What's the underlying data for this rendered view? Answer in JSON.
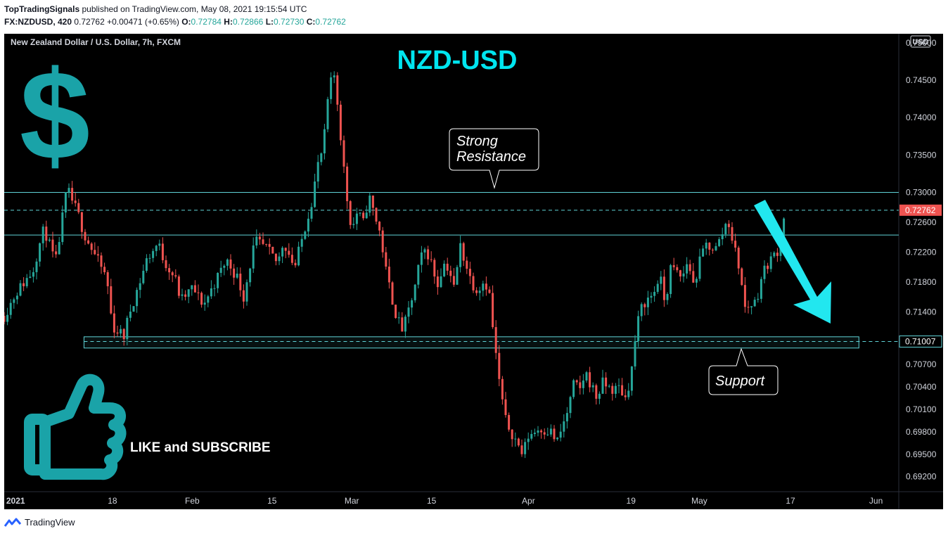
{
  "header": {
    "author": "TopTradingSignals",
    "published": "published on TradingView.com, May 08, 2021 19:15:54 UTC",
    "symbol": "FX:NZDUSD, 420",
    "last": "0.72762",
    "change": "+0.00471 (+0.65%)",
    "o_label": "O:",
    "o_value": "0.72784",
    "h_label": "H:",
    "h_value": "0.72866",
    "l_label": "L:",
    "l_value": "0.72730",
    "c_label": "C:",
    "c_value": "0.72762"
  },
  "chart_data": {
    "type": "candlestick",
    "legend_title": "New Zealand Dollar / U.S. Dollar, 7h, FXCM",
    "currency_label": "USD",
    "title": "NZD-USD",
    "y_ticks": [
      "0.75000",
      "0.74500",
      "0.74000",
      "0.73500",
      "0.73000",
      "0.72600",
      "0.72200",
      "0.71800",
      "0.71400",
      "0.71007",
      "0.70700",
      "0.70400",
      "0.70100",
      "0.69800",
      "0.69500",
      "0.69200"
    ],
    "y_range": [
      0.69,
      0.7512
    ],
    "x_labels": [
      {
        "label": "2021",
        "date": "2021-01-01",
        "bold": true
      },
      {
        "label": "18",
        "date": "2021-01-18"
      },
      {
        "label": "Feb",
        "date": "2021-02-01"
      },
      {
        "label": "15",
        "date": "2021-02-15"
      },
      {
        "label": "Mar",
        "date": "2021-03-01"
      },
      {
        "label": "15",
        "date": "2021-03-15"
      },
      {
        "label": "Apr",
        "date": "2021-04-01"
      },
      {
        "label": "19",
        "date": "2021-04-19"
      },
      {
        "label": "May",
        "date": "2021-05-01"
      },
      {
        "label": "17",
        "date": "2021-05-17"
      },
      {
        "label": "Jun",
        "date": "2021-06-01"
      }
    ],
    "x_range": [
      "2020-12-30",
      "2021-06-05"
    ],
    "last_price": {
      "value": 0.72762,
      "label": "0.72762"
    },
    "support_price": {
      "value": 0.71007,
      "label": "0.71007"
    },
    "resistance_lines": [
      0.73,
      0.7243
    ],
    "support_zone": [
      0.7092,
      0.7107
    ],
    "price_path": [
      [
        "2020-12-30",
        0.7135
      ],
      [
        "2021-01-01",
        0.7165
      ],
      [
        "2021-01-04",
        0.7195
      ],
      [
        "2021-01-05",
        0.7225
      ],
      [
        "2021-01-06",
        0.7252
      ],
      [
        "2021-01-08",
        0.7205
      ],
      [
        "2021-01-09",
        0.7255
      ],
      [
        "2021-01-10",
        0.7305
      ],
      [
        "2021-01-12",
        0.727
      ],
      [
        "2021-01-13",
        0.7245
      ],
      [
        "2021-01-15",
        0.7215
      ],
      [
        "2021-01-17",
        0.7185
      ],
      [
        "2021-01-18",
        0.712
      ],
      [
        "2021-01-20",
        0.7108
      ],
      [
        "2021-01-21",
        0.714
      ],
      [
        "2021-01-23",
        0.7185
      ],
      [
        "2021-01-24",
        0.721
      ],
      [
        "2021-01-26",
        0.7232
      ],
      [
        "2021-01-27",
        0.721
      ],
      [
        "2021-01-29",
        0.7185
      ],
      [
        "2021-01-30",
        0.7155
      ],
      [
        "2021-02-01",
        0.7172
      ],
      [
        "2021-02-03",
        0.715
      ],
      [
        "2021-02-05",
        0.718
      ],
      [
        "2021-02-07",
        0.721
      ],
      [
        "2021-02-09",
        0.7185
      ],
      [
        "2021-02-10",
        0.716
      ],
      [
        "2021-02-12",
        0.7235
      ],
      [
        "2021-02-14",
        0.7225
      ],
      [
        "2021-02-16",
        0.7205
      ],
      [
        "2021-02-17",
        0.7235
      ],
      [
        "2021-02-19",
        0.72
      ],
      [
        "2021-02-20",
        0.723
      ],
      [
        "2021-02-22",
        0.729
      ],
      [
        "2021-02-23",
        0.7335
      ],
      [
        "2021-02-24",
        0.736
      ],
      [
        "2021-02-25",
        0.744
      ],
      [
        "2021-02-26",
        0.7458
      ],
      [
        "2021-02-27",
        0.738
      ],
      [
        "2021-02-28",
        0.73
      ],
      [
        "2021-03-01",
        0.725
      ],
      [
        "2021-03-02",
        0.7275
      ],
      [
        "2021-03-03",
        0.7258
      ],
      [
        "2021-03-04",
        0.7295
      ],
      [
        "2021-03-05",
        0.727
      ],
      [
        "2021-03-06",
        0.7245
      ],
      [
        "2021-03-07",
        0.7195
      ],
      [
        "2021-03-08",
        0.716
      ],
      [
        "2021-03-09",
        0.713
      ],
      [
        "2021-03-10",
        0.7115
      ],
      [
        "2021-03-12",
        0.717
      ],
      [
        "2021-03-13",
        0.721
      ],
      [
        "2021-03-14",
        0.7225
      ],
      [
        "2021-03-15",
        0.7205
      ],
      [
        "2021-03-16",
        0.7175
      ],
      [
        "2021-03-17",
        0.7205
      ],
      [
        "2021-03-18",
        0.72
      ],
      [
        "2021-03-19",
        0.717
      ],
      [
        "2021-03-20",
        0.723
      ],
      [
        "2021-03-22",
        0.718
      ],
      [
        "2021-03-23",
        0.717
      ],
      [
        "2021-03-24",
        0.718
      ],
      [
        "2021-03-25",
        0.7175
      ],
      [
        "2021-03-26",
        0.71
      ],
      [
        "2021-03-27",
        0.704
      ],
      [
        "2021-03-28",
        0.6995
      ],
      [
        "2021-03-29",
        0.698
      ],
      [
        "2021-03-30",
        0.6965
      ],
      [
        "2021-03-31",
        0.695
      ],
      [
        "2021-04-01",
        0.6975
      ],
      [
        "2021-04-03",
        0.6985
      ],
      [
        "2021-04-05",
        0.698
      ],
      [
        "2021-04-06",
        0.6965
      ],
      [
        "2021-04-08",
        0.701
      ],
      [
        "2021-04-09",
        0.7045
      ],
      [
        "2021-04-10",
        0.7035
      ],
      [
        "2021-04-11",
        0.706
      ],
      [
        "2021-04-13",
        0.7025
      ],
      [
        "2021-04-14",
        0.7045
      ],
      [
        "2021-04-16",
        0.7035
      ],
      [
        "2021-04-17",
        0.704
      ],
      [
        "2021-04-18",
        0.7025
      ],
      [
        "2021-04-19",
        0.7055
      ],
      [
        "2021-04-20",
        0.712
      ],
      [
        "2021-04-21",
        0.715
      ],
      [
        "2021-04-23",
        0.7165
      ],
      [
        "2021-04-24",
        0.719
      ],
      [
        "2021-04-25",
        0.715
      ],
      [
        "2021-04-26",
        0.72
      ],
      [
        "2021-04-28",
        0.7185
      ],
      [
        "2021-04-29",
        0.721
      ],
      [
        "2021-04-30",
        0.7175
      ],
      [
        "2021-05-01",
        0.7205
      ],
      [
        "2021-05-02",
        0.723
      ],
      [
        "2021-05-04",
        0.7225
      ],
      [
        "2021-05-05",
        0.7245
      ],
      [
        "2021-05-06",
        0.7265
      ],
      [
        "2021-05-07",
        0.723
      ],
      [
        "2021-05-08",
        0.72
      ],
      [
        "2021-05-09",
        0.7145
      ],
      [
        "2021-05-11",
        0.7155
      ],
      [
        "2021-05-12",
        0.719
      ],
      [
        "2021-05-13",
        0.7205
      ],
      [
        "2021-05-14",
        0.7215
      ],
      [
        "2021-05-15",
        0.7225
      ],
      [
        "2021-05-16",
        0.7276
      ]
    ],
    "annotations": {
      "resistance": [
        "Strong",
        "Resistance"
      ],
      "support": "Support",
      "cta": "LIKE and SUBSCRIBE"
    }
  },
  "colors": {
    "up": "#26a69a",
    "down": "#ef5350",
    "level": "#5fd3d7",
    "accent": "#00e5ef",
    "icon_teal": "#1aa3a8",
    "arrow": "#22e7ef",
    "axis_text": "#d1d4dc",
    "last_price_bg": "#ef5350"
  },
  "icons": [
    "dollar-sign-icon",
    "thumbs-up-icon",
    "down-arrow-icon",
    "tradingview-logo-icon"
  ],
  "footer": {
    "brand": "TradingView"
  }
}
